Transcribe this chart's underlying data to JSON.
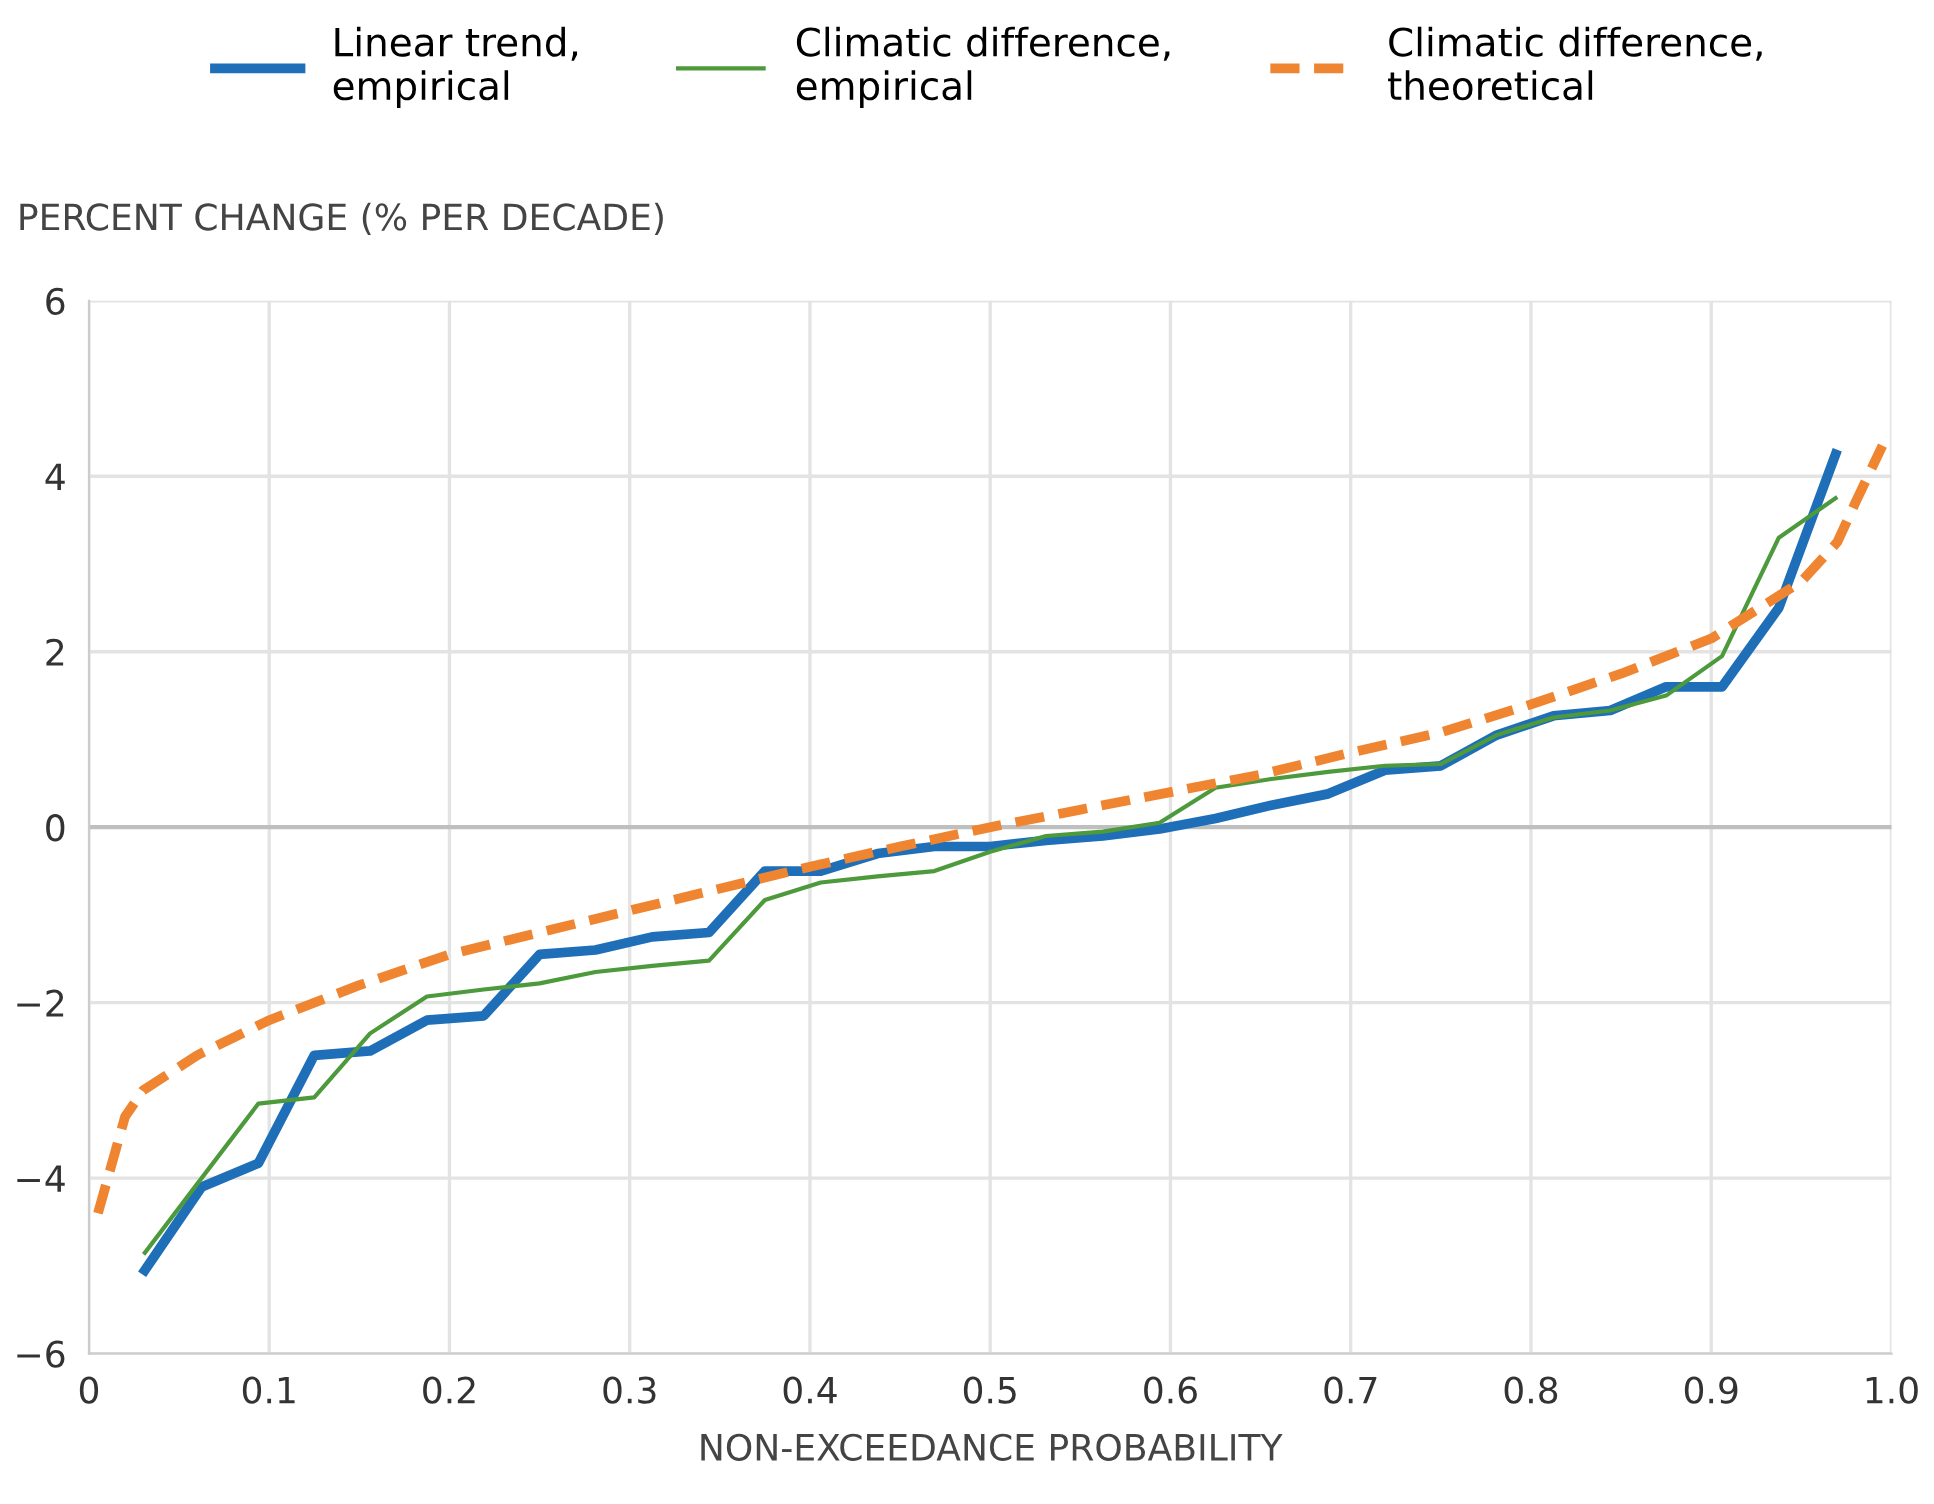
{
  "chart_data": {
    "type": "line",
    "ylabel": "PERCENT CHANGE (% PER DECADE)",
    "xlabel": "NON-EXCEEDANCE PROBABILITY",
    "xlim": [
      0,
      1
    ],
    "ylim": [
      -6,
      6
    ],
    "xticks": [
      0,
      0.1,
      0.2,
      0.3,
      0.4,
      0.5,
      0.6,
      0.7,
      0.8,
      0.9,
      {
        "value": 1,
        "label": "1.0"
      }
    ],
    "yticks": [
      {
        "value": -6,
        "label": "−6"
      },
      {
        "value": -4,
        "label": "−4"
      },
      {
        "value": -2,
        "label": "−2"
      },
      0,
      2,
      4,
      6
    ],
    "grid": true,
    "legend": "top",
    "marker": "none",
    "ref_lines": [
      {
        "axis": "y",
        "value": 0,
        "color": "#bfbfbf"
      }
    ],
    "series": [
      {
        "name": "Linear trend,\nempirical",
        "color": "#1f6fb8",
        "line_style": "solid",
        "x": [
          0.031,
          0.0625,
          0.094,
          0.125,
          0.156,
          0.1875,
          0.219,
          0.25,
          0.281,
          0.3125,
          0.344,
          0.375,
          0.406,
          0.4375,
          0.469,
          0.5,
          0.531,
          0.5625,
          0.594,
          0.625,
          0.656,
          0.6875,
          0.719,
          0.75,
          0.781,
          0.8125,
          0.844,
          0.875,
          0.906,
          0.9375,
          0.969
        ],
        "values": [
          -5.05,
          -4.1,
          -3.83,
          -2.6,
          -2.55,
          -2.2,
          -2.15,
          -1.45,
          -1.4,
          -1.25,
          -1.2,
          -0.5,
          -0.5,
          -0.3,
          -0.22,
          -0.22,
          -0.15,
          -0.1,
          -0.02,
          0.1,
          0.25,
          0.38,
          0.65,
          0.7,
          1.05,
          1.27,
          1.33,
          1.6,
          1.6,
          2.5,
          4.25
        ]
      },
      {
        "name": "Climatic difference,\nempirical",
        "color": "#4c9a3c",
        "line_style": "solid",
        "x": [
          0.031,
          0.0625,
          0.094,
          0.125,
          0.156,
          0.1875,
          0.219,
          0.25,
          0.281,
          0.3125,
          0.344,
          0.375,
          0.406,
          0.4375,
          0.469,
          0.5,
          0.531,
          0.5625,
          0.594,
          0.625,
          0.656,
          0.6875,
          0.719,
          0.75,
          0.781,
          0.8125,
          0.844,
          0.875,
          0.906,
          0.9375,
          0.969
        ],
        "values": [
          -4.85,
          -4.0,
          -3.15,
          -3.08,
          -2.35,
          -1.93,
          -1.85,
          -1.78,
          -1.65,
          -1.58,
          -1.52,
          -0.83,
          -0.63,
          -0.56,
          -0.5,
          -0.28,
          -0.1,
          -0.05,
          0.05,
          0.45,
          0.55,
          0.63,
          0.7,
          0.72,
          1.05,
          1.25,
          1.33,
          1.5,
          1.95,
          3.3,
          3.75
        ]
      },
      {
        "name": "Climatic difference,\ntheoretical",
        "color": "#ef8530",
        "line_style": "dashed",
        "x": [
          0.005,
          0.02,
          0.03,
          0.06,
          0.1,
          0.15,
          0.2,
          0.25,
          0.3,
          0.35,
          0.4,
          0.45,
          0.5,
          0.55,
          0.6,
          0.65,
          0.7,
          0.75,
          0.8,
          0.85,
          0.9,
          0.95,
          0.97,
          0.98,
          0.995
        ],
        "values": [
          -4.4,
          -3.3,
          -3.0,
          -2.6,
          -2.2,
          -1.8,
          -1.45,
          -1.2,
          -0.95,
          -0.7,
          -0.45,
          -0.22,
          0.0,
          0.2,
          0.4,
          0.6,
          0.85,
          1.08,
          1.4,
          1.75,
          2.15,
          2.8,
          3.25,
          3.7,
          4.35
        ]
      }
    ]
  }
}
